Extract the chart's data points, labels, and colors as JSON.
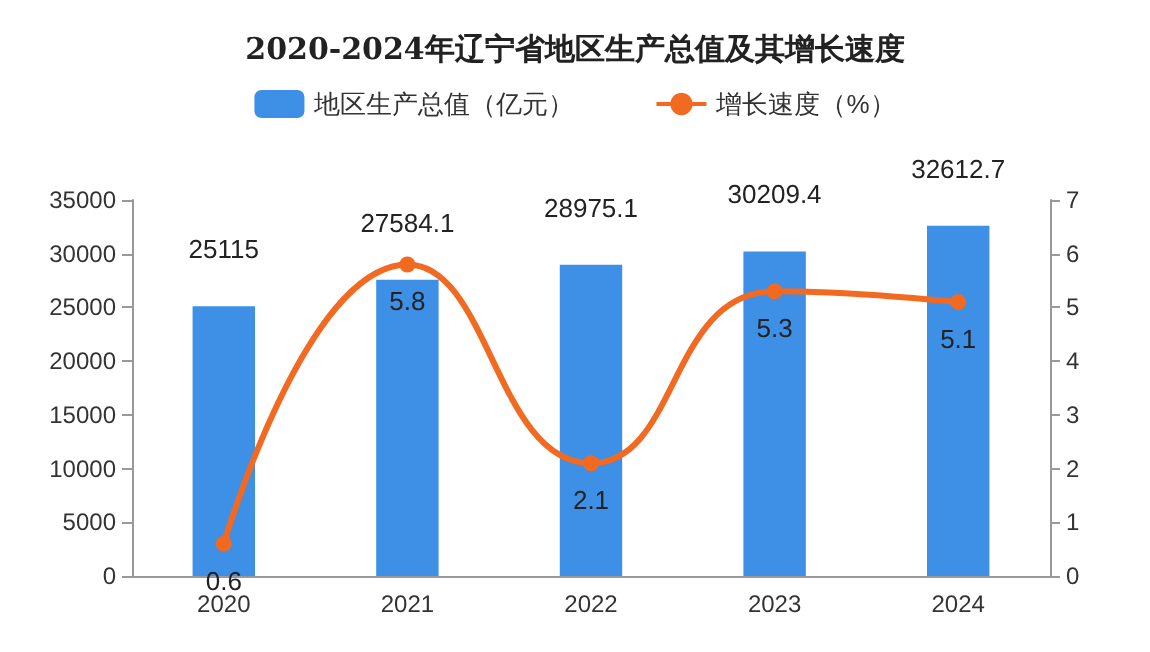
{
  "chart_data": {
    "type": "bar",
    "title": "2020-2024年辽宁省地区生产总值及其增长速度",
    "categories": [
      "2020",
      "2021",
      "2022",
      "2023",
      "2024"
    ],
    "series": [
      {
        "name": "地区生产总值（亿元）",
        "color": "#3e8fe6",
        "values": [
          25115,
          27584.1,
          28975.1,
          30209.4,
          32612.7
        ]
      },
      {
        "name": "增长速度（%）",
        "type": "line",
        "axis": "y2",
        "color": "#f26a21",
        "values": [
          0.6,
          5.8,
          2.1,
          5.3,
          5.1
        ]
      }
    ],
    "ylim": [
      0,
      35000
    ],
    "yticks": [
      0,
      5000,
      10000,
      15000,
      20000,
      25000,
      30000,
      35000
    ],
    "y2lim": [
      0,
      7
    ],
    "y2ticks": [
      0,
      1,
      2,
      3,
      4,
      5,
      6,
      7
    ],
    "data_labels": true,
    "legend": "top",
    "grid": false,
    "marker": "circle",
    "line_style": "solid"
  }
}
